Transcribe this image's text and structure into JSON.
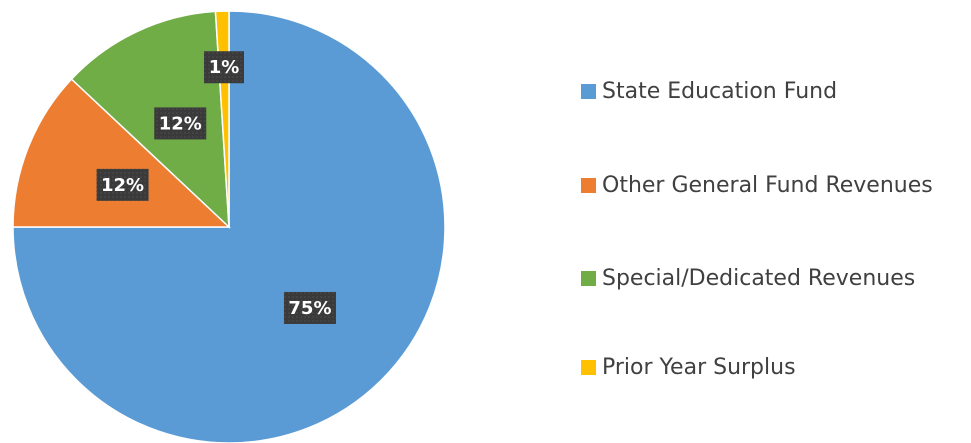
{
  "chart_data": {
    "type": "pie",
    "categories": [
      "State Education Fund",
      "Other General Fund Revenues",
      "Special/Dedicated Revenues",
      "Prior Year Surplus"
    ],
    "values": [
      75,
      12,
      12,
      1
    ],
    "value_labels": [
      "75%",
      "12%",
      "12%",
      "1%"
    ],
    "colors": [
      "#5b9bd5",
      "#ed7d31",
      "#70ad47",
      "#ffc000"
    ],
    "legend": "right"
  }
}
